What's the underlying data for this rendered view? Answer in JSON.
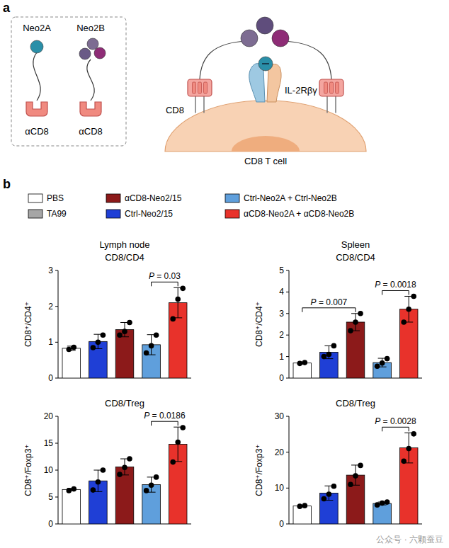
{
  "panel_a": {
    "letter": "a",
    "constructs": [
      {
        "name": "Neo2A",
        "binder": "αCD8"
      },
      {
        "name": "Neo2B",
        "binder": "αCD8"
      }
    ],
    "receptor_label": "CD8",
    "il2r_label": "IL-2Rβγ",
    "cell_label": "CD8 T cell"
  },
  "panel_b": {
    "letter": "b",
    "columns": [
      "Lymph node",
      "Spleen"
    ],
    "legend_entries": [
      {
        "name": "PBS",
        "color": "#ffffff"
      },
      {
        "name": "TA99",
        "color": "#a6a6a6"
      },
      {
        "name": "αCD8-Neo2/15",
        "color": "#8c1a1a"
      },
      {
        "name": "Ctrl-Neo2/15",
        "color": "#1f3fd6"
      },
      {
        "name": "Ctrl-Neo2A + Ctrl-Neo2B",
        "color": "#5f9fdc"
      },
      {
        "name": "αCD8-Neo2A + αCD8-Neo2B",
        "color": "#e8322b"
      }
    ]
  },
  "chart_data": [
    {
      "type": "bar",
      "title": "CD8/CD4",
      "y_label": "CD8⁺/CD4⁺",
      "categories": [
        "PBS",
        "Ctrl-Neo2/15",
        "αCD8-Neo2/15",
        "Ctrl-Neo2A + Ctrl-Neo2B",
        "αCD8-Neo2A + αCD8-Neo2B"
      ],
      "values": [
        0.83,
        1.02,
        1.35,
        0.93,
        2.1
      ],
      "errors": [
        0.06,
        0.2,
        0.2,
        0.28,
        0.42
      ],
      "points": [
        [
          0.8,
          0.86
        ],
        [
          0.85,
          1.0,
          1.2
        ],
        [
          1.2,
          1.3,
          1.55
        ],
        [
          0.7,
          0.9,
          1.2
        ],
        [
          1.65,
          2.2,
          2.5
        ]
      ],
      "ylim": [
        0,
        3
      ],
      "yticks": [
        0,
        1,
        2,
        3
      ],
      "grid": false,
      "tick_labels": "y",
      "annotations": [
        {
          "from": 3,
          "to": 4,
          "label": "P = 0.03"
        }
      ]
    },
    {
      "type": "bar",
      "title": "CD8/CD4",
      "y_label": "CD8⁺/CD4⁺",
      "categories": [
        "PBS",
        "Ctrl-Neo2/15",
        "αCD8-Neo2/15",
        "Ctrl-Neo2A + Ctrl-Neo2B",
        "αCD8-Neo2A + αCD8-Neo2B"
      ],
      "values": [
        0.7,
        1.2,
        2.6,
        0.72,
        3.2
      ],
      "errors": [
        0.05,
        0.3,
        0.4,
        0.2,
        0.6
      ],
      "points": [
        [
          0.68,
          0.72
        ],
        [
          1.0,
          1.1,
          1.5
        ],
        [
          2.2,
          2.6,
          3.0
        ],
        [
          0.55,
          0.7,
          0.9
        ],
        [
          2.6,
          3.2,
          3.8
        ]
      ],
      "ylim": [
        0,
        5
      ],
      "yticks": [
        0,
        1,
        2,
        3,
        4,
        5
      ],
      "grid": false,
      "tick_labels": "y",
      "annotations": [
        {
          "from": 0,
          "to": 2,
          "label": "P = 0.007"
        },
        {
          "from": 3,
          "to": 4,
          "label": "P = 0.0018"
        }
      ]
    },
    {
      "type": "bar",
      "title": "CD8/Treg",
      "y_label": "CD8⁺/Foxp3⁺",
      "categories": [
        "PBS",
        "Ctrl-Neo2/15",
        "αCD8-Neo2/15",
        "Ctrl-Neo2A + Ctrl-Neo2B",
        "αCD8-Neo2A + αCD8-Neo2B"
      ],
      "values": [
        6.4,
        8.0,
        10.6,
        7.3,
        14.8
      ],
      "errors": [
        0.2,
        2.0,
        1.5,
        1.4,
        3.2
      ],
      "points": [
        [
          6.2,
          6.5
        ],
        [
          6.3,
          7.8,
          10.0
        ],
        [
          9.2,
          10.5,
          12.1
        ],
        [
          6.2,
          7.2,
          8.7
        ],
        [
          11.5,
          15.2,
          17.9
        ]
      ],
      "ylim": [
        0,
        20
      ],
      "yticks": [
        0,
        5,
        10,
        15,
        20
      ],
      "grid": false,
      "tick_labels": "y",
      "annotations": [
        {
          "from": 3,
          "to": 4,
          "label": "P = 0.0186"
        }
      ]
    },
    {
      "type": "bar",
      "title": "CD8/Treg",
      "y_label": "CD8⁺/Foxp3⁺",
      "categories": [
        "PBS",
        "Ctrl-Neo2/15",
        "αCD8-Neo2/15",
        "Ctrl-Neo2A + Ctrl-Neo2B",
        "αCD8-Neo2A + αCD8-Neo2B"
      ],
      "values": [
        5.0,
        8.6,
        13.6,
        5.7,
        21.2
      ],
      "errors": [
        0.2,
        2.0,
        2.8,
        0.4,
        4.2
      ],
      "points": [
        [
          4.9,
          5.1
        ],
        [
          7.0,
          8.3,
          10.5
        ],
        [
          11.0,
          13.4,
          16.3
        ],
        [
          5.3,
          5.8,
          6.1
        ],
        [
          17.5,
          21.0,
          25.1
        ]
      ],
      "ylim": [
        0,
        30
      ],
      "yticks": [
        0,
        10,
        20,
        30
      ],
      "grid": false,
      "tick_labels": "y",
      "annotations": [
        {
          "from": 3,
          "to": 4,
          "label": "P = 0.0028"
        }
      ]
    }
  ],
  "watermark": "公众号 · 六颗蚕豆"
}
